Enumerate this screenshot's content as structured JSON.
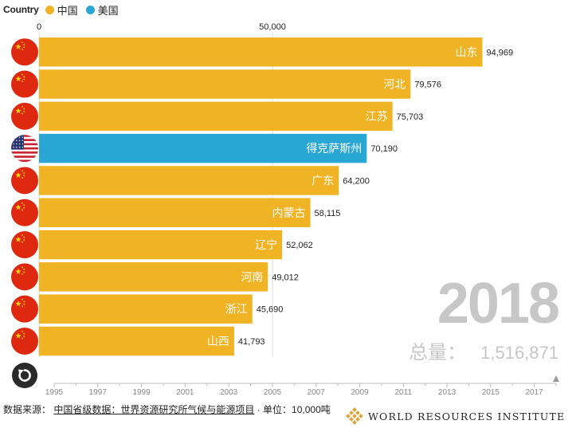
{
  "legend": {
    "title": "Country",
    "items": [
      {
        "label": "中国",
        "color": "#f0b323"
      },
      {
        "label": "美国",
        "color": "#2aa6d4"
      }
    ]
  },
  "chart_data": {
    "type": "bar",
    "orientation": "horizontal",
    "top_axis_ticks": [
      {
        "value": 0,
        "label": "0"
      },
      {
        "value": 50000,
        "label": "50,000"
      }
    ],
    "bars": [
      {
        "label": "山东",
        "value": 94969,
        "value_label": "94,969",
        "country": "中国",
        "flag": "china-flag-icon"
      },
      {
        "label": "河北",
        "value": 79576,
        "value_label": "79,576",
        "country": "中国",
        "flag": "china-flag-icon"
      },
      {
        "label": "江苏",
        "value": 75703,
        "value_label": "75,703",
        "country": "中国",
        "flag": "china-flag-icon"
      },
      {
        "label": "得克萨斯州",
        "value": 70190,
        "value_label": "70,190",
        "country": "美国",
        "flag": "us-flag-icon"
      },
      {
        "label": "广东",
        "value": 64200,
        "value_label": "64,200",
        "country": "中国",
        "flag": "china-flag-icon"
      },
      {
        "label": "内蒙古",
        "value": 58115,
        "value_label": "58,115",
        "country": "中国",
        "flag": "china-flag-icon"
      },
      {
        "label": "辽宁",
        "value": 52062,
        "value_label": "52,062",
        "country": "中国",
        "flag": "china-flag-icon"
      },
      {
        "label": "河南",
        "value": 49012,
        "value_label": "49,012",
        "country": "中国",
        "flag": "china-flag-icon"
      },
      {
        "label": "浙江",
        "value": 45690,
        "value_label": "45,690",
        "country": "中国",
        "flag": "china-flag-icon"
      },
      {
        "label": "山西",
        "value": 41793,
        "value_label": "41,793",
        "country": "中国",
        "flag": "china-flag-icon"
      }
    ],
    "timeline": {
      "tick_labels": [
        "1995",
        "1997",
        "1999",
        "2001",
        "2003",
        "2005",
        "2007",
        "2009",
        "2011",
        "2013",
        "2015",
        "2017"
      ],
      "min_year": 1995,
      "max_year": 2018,
      "current_year": 2018
    }
  },
  "year_display": "2018",
  "total": {
    "label": "总量：",
    "value": "1,516,871"
  },
  "footer": {
    "source_label": "数据来源：",
    "source_link": "中国省级数据：世界资源研究所气候与能源项目",
    "unit_text": "· 单位：10,000吨"
  },
  "brand": {
    "name": "WORLD RESOURCES INSTITUTE"
  },
  "icons": {
    "replay": "replay-icon",
    "logo": "wri-logo-icon"
  }
}
